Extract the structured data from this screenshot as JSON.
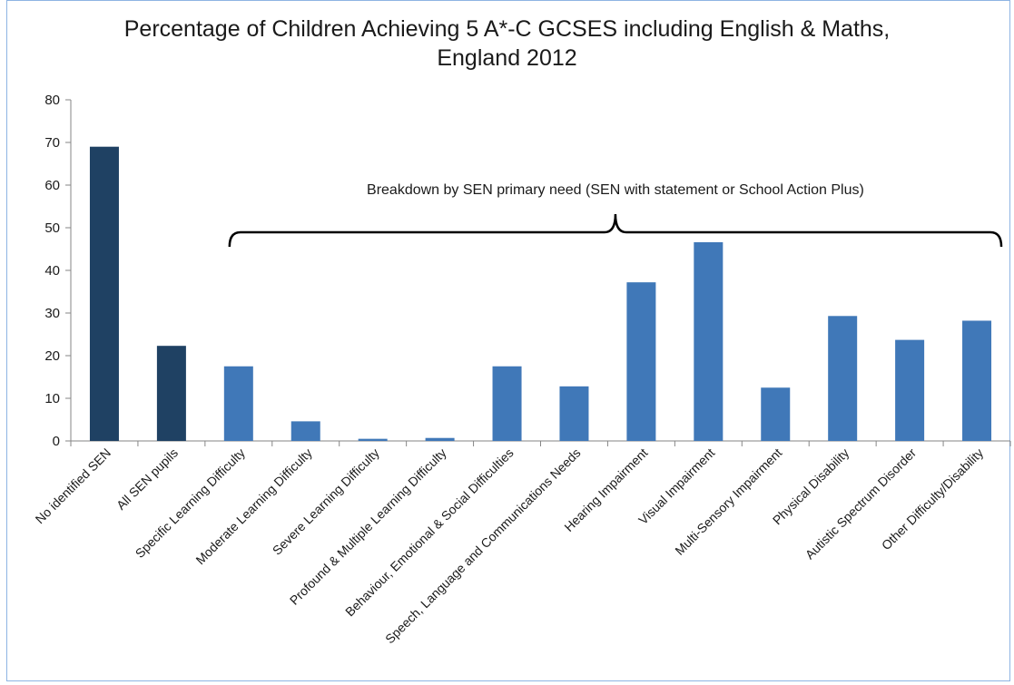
{
  "chart_data": {
    "type": "bar",
    "title_line1": "Percentage of Children Achieving 5 A*-C GCSES including English & Maths,",
    "title_line2": "England 2012",
    "xlabel": "",
    "ylabel": "",
    "ylim": [
      0,
      80
    ],
    "yticks": [
      0,
      10,
      20,
      30,
      40,
      50,
      60,
      70,
      80
    ],
    "grid": false,
    "legend": "none",
    "categories": [
      "No identified SEN",
      "All SEN pupils",
      "Specific Learning Difficulty",
      "Moderate Learning Difficulty",
      "Severe Learning Difficulty",
      "Profound & Multiple Learning Difficulty",
      "Behaviour, Emotional & Social Difficulties",
      "Speech, Language and Communications Needs",
      "Hearing Impairment",
      "Visual Impairment",
      "Multi-Sensory Impairment",
      "Physical Disability",
      "Autistic Spectrum Disorder",
      "Other Difficulty/Disability"
    ],
    "values": [
      69.0,
      22.3,
      17.5,
      4.6,
      0.5,
      0.7,
      17.5,
      12.8,
      37.2,
      46.6,
      12.5,
      29.3,
      23.7,
      28.2
    ],
    "colors": [
      "#1f4163",
      "#1f4163",
      "#4078b8",
      "#4078b8",
      "#4078b8",
      "#4078b8",
      "#4078b8",
      "#4078b8",
      "#4078b8",
      "#4078b8",
      "#4078b8",
      "#4078b8",
      "#4078b8",
      "#4078b8"
    ],
    "annotation": {
      "text": "Breakdown by SEN primary need (SEN with statement or School Action Plus)",
      "from_category": 2,
      "to_category": 13
    }
  }
}
